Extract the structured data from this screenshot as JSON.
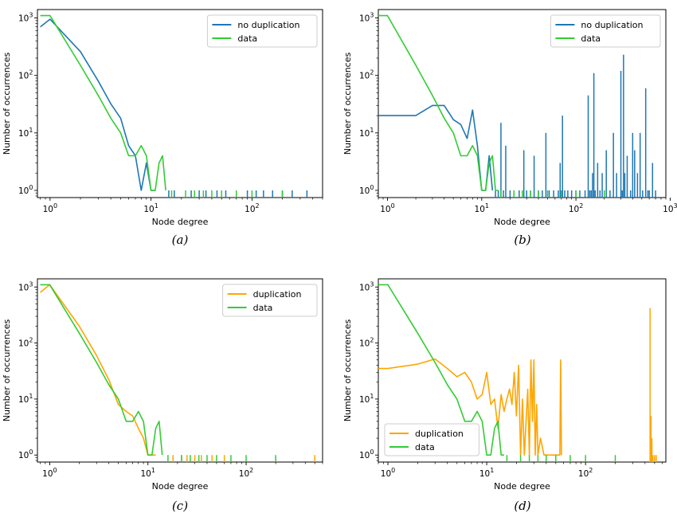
{
  "colors": {
    "no_duplication": "#1f77b4",
    "duplication": "#ffa500",
    "data": "#33cc33"
  },
  "chart_data": [
    {
      "type": "line",
      "panel_label": "(a)",
      "xlabel": "Node degree",
      "ylabel": "Number of occurrences",
      "x_scale": "log",
      "y_scale": "log",
      "xlim": [
        0.75,
        500
      ],
      "ylim": [
        0.75,
        1400
      ],
      "x_ticks": [
        "10^0",
        "10^1",
        "10^2"
      ],
      "y_ticks": [
        "10^0",
        "10^1",
        "10^2",
        "10^3"
      ],
      "legend_position": "top-right",
      "series": [
        {
          "name": "no duplication",
          "color": "#1f77b4",
          "x": [
            0.8,
            1,
            2,
            3,
            4,
            5,
            6,
            7,
            8,
            9,
            10,
            11
          ],
          "y": [
            700,
            950,
            260,
            80,
            32,
            18,
            6,
            4,
            1,
            3,
            1,
            1
          ],
          "spikes": [
            15,
            17,
            25,
            30,
            35,
            45,
            55,
            70,
            90,
            110,
            130,
            160,
            200,
            250,
            350
          ]
        },
        {
          "name": "data",
          "color": "#33cc33",
          "x": [
            0.8,
            1,
            2,
            3,
            4,
            5,
            6,
            7,
            8,
            9,
            10,
            11,
            12,
            13,
            14
          ],
          "y": [
            1100,
            1100,
            150,
            45,
            18,
            10,
            4,
            4,
            6,
            4,
            1,
            1,
            3,
            4,
            1
          ],
          "spikes": [
            16,
            22,
            27,
            33,
            40,
            50,
            70,
            100,
            200
          ]
        }
      ]
    },
    {
      "type": "line",
      "panel_label": "(b)",
      "xlabel": "Node degree",
      "ylabel": "Number of occurrences",
      "x_scale": "log",
      "y_scale": "log",
      "xlim": [
        0.8,
        900
      ],
      "ylim": [
        0.75,
        1400
      ],
      "x_ticks": [
        "10^0",
        "10^1",
        "10^2",
        "10^3"
      ],
      "y_ticks": [
        "10^0",
        "10^1",
        "10^2",
        "10^3"
      ],
      "legend_position": "top-right",
      "series": [
        {
          "name": "no duplication",
          "color": "#1f77b4",
          "x": [
            0.8,
            1,
            2,
            3,
            4,
            5,
            6,
            7,
            8,
            9,
            10,
            11,
            12,
            13
          ],
          "y": [
            20,
            20,
            20,
            30,
            30,
            17,
            14,
            8,
            25,
            6,
            1,
            1,
            4,
            1
          ],
          "spikes": [
            [
              14,
              1
            ],
            [
              15,
              1
            ],
            [
              16,
              15
            ],
            [
              17,
              1
            ],
            [
              18,
              6
            ],
            [
              20,
              1
            ],
            [
              22,
              1
            ],
            [
              25,
              1
            ],
            [
              28,
              5
            ],
            [
              30,
              1
            ],
            [
              33,
              1
            ],
            [
              36,
              4
            ],
            [
              40,
              1
            ],
            [
              44,
              1
            ],
            [
              48,
              10
            ],
            [
              52,
              1
            ],
            [
              58,
              1
            ],
            [
              65,
              1
            ],
            [
              68,
              3
            ],
            [
              72,
              20
            ],
            [
              76,
              1
            ],
            [
              82,
              1
            ],
            [
              90,
              1
            ],
            [
              100,
              1
            ],
            [
              110,
              1
            ],
            [
              125,
              1
            ],
            [
              135,
              45
            ],
            [
              140,
              1
            ],
            [
              145,
              1
            ],
            [
              150,
              2
            ],
            [
              155,
              110
            ],
            [
              160,
              1
            ],
            [
              170,
              3
            ],
            [
              180,
              1
            ],
            [
              190,
              2
            ],
            [
              200,
              1
            ],
            [
              210,
              5
            ],
            [
              230,
              1
            ],
            [
              250,
              10
            ],
            [
              270,
              2
            ],
            [
              300,
              120
            ],
            [
              310,
              1
            ],
            [
              320,
              230
            ],
            [
              330,
              2
            ],
            [
              350,
              4
            ],
            [
              380,
              1
            ],
            [
              400,
              10
            ],
            [
              420,
              5
            ],
            [
              450,
              2
            ],
            [
              480,
              10
            ],
            [
              510,
              1
            ],
            [
              550,
              60
            ],
            [
              580,
              1
            ],
            [
              600,
              1
            ],
            [
              650,
              3
            ],
            [
              700,
              1
            ]
          ]
        },
        {
          "name": "data",
          "color": "#33cc33",
          "x": [
            0.8,
            1,
            2,
            3,
            4,
            5,
            6,
            7,
            8,
            9,
            10,
            11,
            12,
            13,
            14,
            15
          ],
          "y": [
            1100,
            1100,
            150,
            45,
            18,
            10,
            4,
            4,
            6,
            4,
            1,
            1,
            3,
            4,
            1,
            1
          ],
          "spikes": [
            16,
            22,
            27,
            33,
            40,
            50,
            70,
            100,
            200
          ]
        }
      ]
    },
    {
      "type": "line",
      "panel_label": "(c)",
      "xlabel": "Node degree",
      "ylabel": "Number of occurrences",
      "x_scale": "log",
      "y_scale": "log",
      "xlim": [
        0.75,
        600
      ],
      "ylim": [
        0.75,
        1400
      ],
      "x_ticks": [
        "10^0",
        "10^1",
        "10^2"
      ],
      "y_ticks": [
        "10^0",
        "10^1",
        "10^2",
        "10^3"
      ],
      "legend_position": "top-right",
      "series": [
        {
          "name": "duplication",
          "color": "#ffa500",
          "x": [
            0.8,
            1,
            2,
            3,
            4,
            5,
            6,
            7,
            8,
            9,
            10,
            11,
            12
          ],
          "y": [
            800,
            1100,
            200,
            60,
            22,
            8,
            6,
            5,
            3,
            2,
            1,
            1,
            1
          ],
          "spikes": [
            18,
            22,
            25,
            30,
            35,
            45,
            60,
            500
          ]
        },
        {
          "name": "data",
          "color": "#33cc33",
          "x": [
            0.8,
            1,
            2,
            3,
            4,
            5,
            6,
            7,
            8,
            9,
            10,
            11,
            12,
            13,
            14
          ],
          "y": [
            1100,
            1100,
            150,
            45,
            18,
            10,
            4,
            4,
            6,
            4,
            1,
            1,
            3,
            4,
            1
          ],
          "spikes": [
            16,
            22,
            27,
            33,
            40,
            50,
            70,
            100,
            200
          ]
        }
      ]
    },
    {
      "type": "line",
      "panel_label": "(d)",
      "xlabel": "Node degree",
      "ylabel": "Number of occurrences",
      "x_scale": "log",
      "y_scale": "log",
      "xlim": [
        0.8,
        650
      ],
      "ylim": [
        0.75,
        1400
      ],
      "x_ticks": [
        "10^0",
        "10^1",
        "10^2"
      ],
      "y_ticks": [
        "10^0",
        "10^1",
        "10^2",
        "10^3"
      ],
      "legend_position": "bottom-left",
      "series": [
        {
          "name": "duplication",
          "color": "#ffa500",
          "x": [
            0.8,
            1,
            2,
            3,
            4,
            5,
            6,
            7,
            8,
            9,
            10,
            11,
            12,
            13,
            14,
            15,
            16,
            17,
            18,
            19,
            20,
            21,
            22,
            23,
            24,
            25,
            26,
            27,
            28,
            29,
            30,
            31,
            32,
            33,
            35,
            38,
            40,
            45,
            50,
            55,
            56,
            57
          ],
          "y": [
            35,
            35,
            42,
            52,
            35,
            25,
            30,
            20,
            10,
            12,
            30,
            8,
            10,
            3,
            12,
            6,
            10,
            15,
            8,
            30,
            5,
            40,
            1,
            10,
            1,
            4,
            15,
            1,
            50,
            4,
            50,
            1,
            8,
            1,
            2,
            1,
            1,
            1,
            1,
            1,
            50,
            1
          ],
          "spikes": [
            [
              450,
              420
            ],
            [
              460,
              5
            ],
            [
              470,
              2
            ],
            [
              480,
              1
            ],
            [
              500,
              1
            ],
            [
              520,
              1
            ]
          ]
        },
        {
          "name": "data",
          "color": "#33cc33",
          "x": [
            0.8,
            1,
            2,
            3,
            4,
            5,
            6,
            7,
            8,
            9,
            10,
            11,
            12,
            13,
            14,
            15
          ],
          "y": [
            1100,
            1100,
            150,
            45,
            18,
            10,
            4,
            4,
            6,
            4,
            1,
            1,
            3,
            4,
            1,
            1
          ],
          "spikes": [
            16,
            22,
            27,
            33,
            40,
            50,
            70,
            100,
            200
          ]
        }
      ]
    }
  ]
}
